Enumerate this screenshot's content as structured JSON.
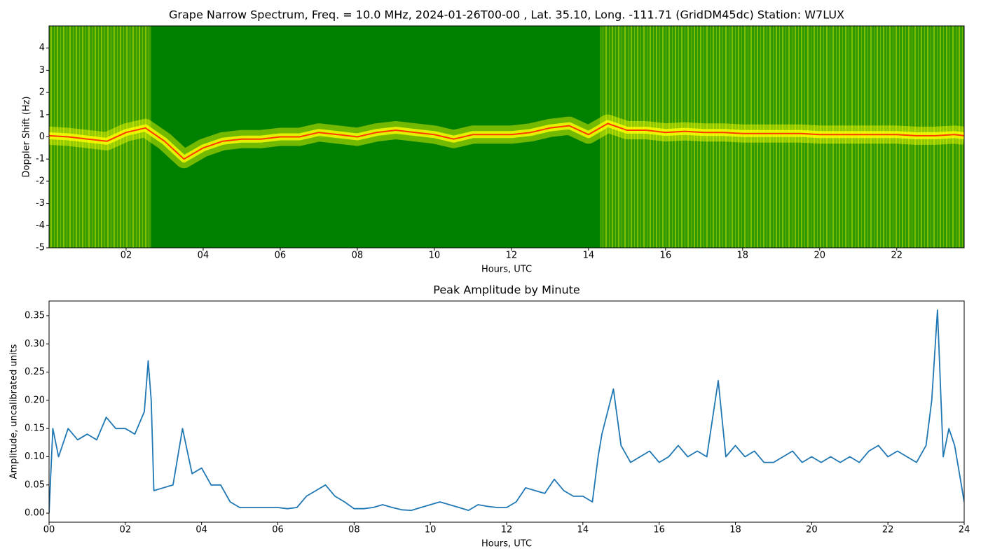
{
  "chart_data": [
    {
      "type": "spectrogram",
      "title": "Grape Narrow Spectrum, Freq. = 10.0 MHz, 2024-01-26T00-00 , Lat.  35.10, Long. -111.71 (GridDM45dc) Station: W7LUX",
      "xlabel": "Hours, UTC",
      "ylabel": "Doppler Shift (Hz)",
      "xlim": [
        0,
        23.75
      ],
      "ylim": [
        -5,
        5
      ],
      "xticks": [
        {
          "value": 2,
          "label": "02"
        },
        {
          "value": 4,
          "label": "04"
        },
        {
          "value": 6,
          "label": "06"
        },
        {
          "value": 8,
          "label": "08"
        },
        10,
        12,
        14,
        16,
        18,
        20,
        22
      ],
      "yticks": [
        -5,
        -4,
        -3,
        -2,
        -1,
        0,
        1,
        2,
        3,
        4
      ],
      "background_color": "#008000",
      "spread_color": "#ffff00",
      "series": [
        {
          "name": "Peak Doppler",
          "color": "#ff3a00",
          "x": [
            0,
            0.5,
            1,
            1.5,
            2,
            2.5,
            3,
            3.5,
            4,
            4.5,
            5,
            5.5,
            6,
            6.5,
            7,
            7.5,
            8,
            8.5,
            9,
            9.5,
            10,
            10.5,
            11,
            11.5,
            12,
            12.5,
            13,
            13.5,
            14,
            14.5,
            15,
            15.5,
            16,
            16.5,
            17,
            17.5,
            18,
            18.5,
            19,
            19.5,
            20,
            20.5,
            21,
            21.5,
            22,
            22.5,
            23,
            23.5,
            23.75
          ],
          "values": [
            0.05,
            0,
            -0.1,
            -0.2,
            0.2,
            0.4,
            -0.2,
            -1,
            -0.5,
            -0.2,
            -0.1,
            -0.1,
            0,
            0,
            0.2,
            0.1,
            0,
            0.2,
            0.3,
            0.2,
            0.1,
            -0.1,
            0.1,
            0.1,
            0.1,
            0.2,
            0.4,
            0.5,
            0.1,
            0.6,
            0.3,
            0.3,
            0.2,
            0.25,
            0.2,
            0.2,
            0.15,
            0.15,
            0.15,
            0.15,
            0.1,
            0.1,
            0.1,
            0.1,
            0.1,
            0.05,
            0.05,
            0.1,
            0.05
          ]
        }
      ]
    },
    {
      "type": "line",
      "title": "Peak Amplitude by Minute",
      "xlabel": "Hours, UTC",
      "ylabel": "Amplitude, uncalibrated units",
      "xlim": [
        0,
        24
      ],
      "ylim": [
        -0.016,
        0.376
      ],
      "xticks": [
        {
          "value": 0,
          "label": "00"
        },
        {
          "value": 2,
          "label": "02"
        },
        {
          "value": 4,
          "label": "04"
        },
        {
          "value": 6,
          "label": "06"
        },
        {
          "value": 8,
          "label": "08"
        },
        10,
        12,
        14,
        16,
        18,
        20,
        22,
        24
      ],
      "yticks": [
        {
          "value": 0,
          "label": "0.00"
        },
        0.05,
        {
          "value": 0.1,
          "label": "0.10"
        },
        0.15,
        {
          "value": 0.2,
          "label": "0.20"
        },
        0.25,
        {
          "value": 0.3,
          "label": "0.30"
        },
        0.35
      ],
      "series": [
        {
          "name": "Peak Amplitude",
          "color": "#1f77b4",
          "x": [
            0,
            0.1,
            0.25,
            0.5,
            0.75,
            1,
            1.25,
            1.5,
            1.75,
            2,
            2.25,
            2.5,
            2.6,
            2.68,
            2.75,
            3,
            3.25,
            3.5,
            3.75,
            4,
            4.25,
            4.5,
            4.75,
            5,
            5.25,
            5.5,
            5.75,
            6,
            6.25,
            6.5,
            6.75,
            7,
            7.25,
            7.5,
            7.75,
            8,
            8.25,
            8.5,
            8.75,
            9,
            9.25,
            9.5,
            9.75,
            10,
            10.25,
            10.5,
            10.75,
            11,
            11.25,
            11.5,
            11.75,
            12,
            12.25,
            12.5,
            12.75,
            13,
            13.25,
            13.5,
            13.75,
            14,
            14.25,
            14.4,
            14.5,
            14.8,
            15,
            15.25,
            15.5,
            15.75,
            16,
            16.25,
            16.5,
            16.75,
            17,
            17.25,
            17.55,
            17.75,
            18,
            18.25,
            18.5,
            18.75,
            19,
            19.25,
            19.5,
            19.75,
            20,
            20.25,
            20.5,
            20.75,
            21,
            21.25,
            21.5,
            21.75,
            22,
            22.25,
            22.5,
            22.75,
            23,
            23.15,
            23.3,
            23.45,
            23.6,
            23.75,
            23.9,
            24
          ],
          "values": [
            0.0,
            0.15,
            0.1,
            0.15,
            0.13,
            0.14,
            0.13,
            0.17,
            0.15,
            0.15,
            0.14,
            0.18,
            0.27,
            0.2,
            0.04,
            0.045,
            0.05,
            0.15,
            0.07,
            0.08,
            0.05,
            0.05,
            0.02,
            0.01,
            0.01,
            0.01,
            0.01,
            0.01,
            0.008,
            0.01,
            0.03,
            0.04,
            0.05,
            0.03,
            0.02,
            0.008,
            0.008,
            0.01,
            0.015,
            0.01,
            0.006,
            0.005,
            0.01,
            0.015,
            0.02,
            0.015,
            0.01,
            0.005,
            0.015,
            0.012,
            0.01,
            0.01,
            0.02,
            0.045,
            0.04,
            0.035,
            0.06,
            0.04,
            0.03,
            0.03,
            0.02,
            0.1,
            0.14,
            0.22,
            0.12,
            0.09,
            0.1,
            0.11,
            0.09,
            0.1,
            0.12,
            0.1,
            0.11,
            0.1,
            0.235,
            0.1,
            0.12,
            0.1,
            0.11,
            0.09,
            0.09,
            0.1,
            0.11,
            0.09,
            0.1,
            0.09,
            0.1,
            0.09,
            0.1,
            0.09,
            0.11,
            0.12,
            0.1,
            0.11,
            0.1,
            0.09,
            0.12,
            0.2,
            0.36,
            0.1,
            0.15,
            0.12,
            0.06,
            0.02
          ]
        }
      ]
    }
  ]
}
